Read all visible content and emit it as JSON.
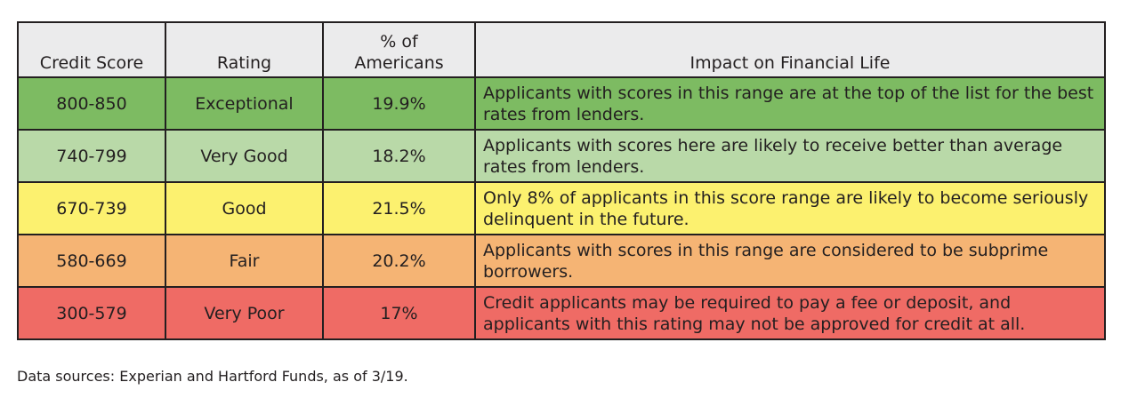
{
  "table": {
    "headers": {
      "credit_score": "Credit Score",
      "rating": "Rating",
      "pct_line1": "% of",
      "pct_line2": "Americans",
      "impact": "Impact on Financial Life"
    },
    "rows": [
      {
        "score": "800-850",
        "rating": "Exceptional",
        "pct": "19.9%",
        "impact": "Applicants with scores in this range are at the top of the list for the best rates from lenders.",
        "color": "#7dbb62"
      },
      {
        "score": "740-799",
        "rating": "Very Good",
        "pct": "18.2%",
        "impact": "Applicants with scores here are likely to receive better than average rates from lenders.",
        "color": "#b9d9a8"
      },
      {
        "score": "670-739",
        "rating": "Good",
        "pct": "21.5%",
        "impact": "Only 8% of applicants in this score range are likely to become seriously delinquent in the future.",
        "color": "#fcf16f"
      },
      {
        "score": "580-669",
        "rating": "Fair",
        "pct": "20.2%",
        "impact": "Applicants with scores in this range are considered to be subprime borrowers.",
        "color": "#f5b474"
      },
      {
        "score": "300-579",
        "rating": "Very Poor",
        "pct": "17%",
        "impact": "Credit applicants may be required to pay a fee or deposit, and applicants with this rating may not be approved for credit at all.",
        "color": "#ef6b65"
      }
    ],
    "header_color": "#ebebec"
  },
  "footnote": "Data sources: Experian and Hartford Funds, as of 3/19."
}
